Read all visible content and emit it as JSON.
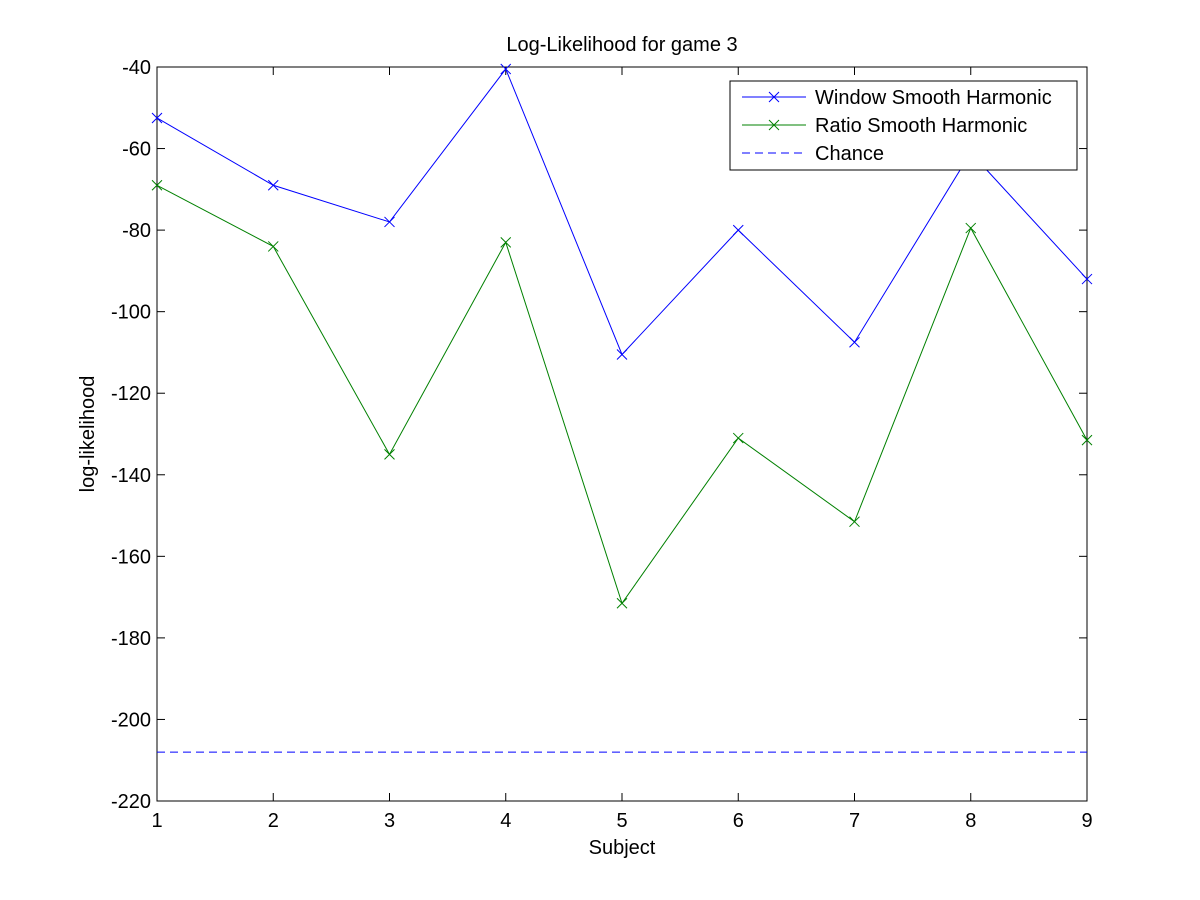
{
  "chart_data": {
    "type": "line",
    "title": "Log-Likelihood for game 3",
    "xlabel": "Subject",
    "ylabel": "log-likelihood",
    "xlim": [
      1,
      9
    ],
    "ylim": [
      -220,
      -40
    ],
    "xticks": [
      1,
      2,
      3,
      4,
      5,
      6,
      7,
      8,
      9
    ],
    "yticks": [
      -220,
      -200,
      -180,
      -160,
      -140,
      -120,
      -100,
      -80,
      -60,
      -40
    ],
    "grid": false,
    "legend_position": "top-right",
    "x": [
      1,
      2,
      3,
      4,
      5,
      6,
      7,
      8,
      9
    ],
    "series": [
      {
        "name": "Window Smooth Harmonic",
        "color": "#0000ff",
        "marker": "x",
        "line_style": "solid",
        "values": [
          -52.5,
          -69,
          -78,
          -40.5,
          -110.5,
          -80,
          -107.5,
          -61,
          -92
        ]
      },
      {
        "name": "Ratio Smooth Harmonic",
        "color": "#008000",
        "marker": "x",
        "line_style": "solid",
        "values": [
          -69,
          -84,
          -135,
          -83,
          -171.5,
          -131,
          -151.5,
          -79.5,
          -131.5
        ]
      },
      {
        "name": "Chance",
        "color": "#0000ff",
        "marker": "none",
        "line_style": "dashed",
        "values": [
          -208,
          -208,
          -208,
          -208,
          -208,
          -208,
          -208,
          -208,
          -208
        ]
      }
    ]
  }
}
